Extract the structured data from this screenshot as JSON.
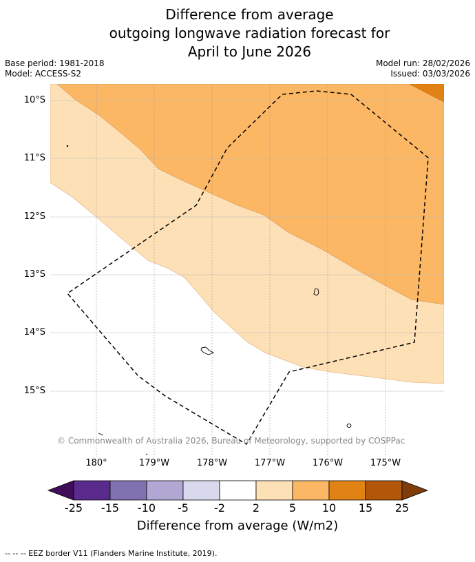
{
  "title": {
    "line1": "Difference from average",
    "line2": "outgoing longwave radiation forecast for",
    "line3": "April to June 2026"
  },
  "meta": {
    "base_period": "Base period: 1981-2018",
    "model": "Model: ACCESS-S2",
    "model_run": "Model run: 28/02/2026",
    "issued": "Issued: 03/03/2026"
  },
  "lat_labels": [
    "10°S",
    "11°S",
    "12°S",
    "13°S",
    "14°S",
    "15°S"
  ],
  "lon_labels": [
    "180°",
    "179°W",
    "178°W",
    "177°W",
    "176°W",
    "175°W"
  ],
  "copyright": "© Commonwealth of Australia 2026, Bureau of Meteorology, supported by COSPPac",
  "colorbar": {
    "ticks": [
      "-25",
      "-15",
      "-10",
      "-5",
      "-2",
      "2",
      "5",
      "10",
      "15",
      "25"
    ],
    "colors": {
      "extend_low": "#3f0d5a",
      "m25_m15": "#5a2a8c",
      "m15_m10": "#8071b0",
      "m10_m5": "#b0a8d3",
      "m5_m2": "#d8d9ec",
      "m2_2": "#ffffff",
      "p2_5": "#fde0b6",
      "p5_10": "#fbb764",
      "p10_15": "#e08314",
      "p15_25": "#b2570a",
      "extend_high": "#7f3b08"
    },
    "title": "Difference from average (W/m2)"
  },
  "footnote": "--  --  -- EEZ border V11 (Flanders Marine Institute, 2019)."
}
